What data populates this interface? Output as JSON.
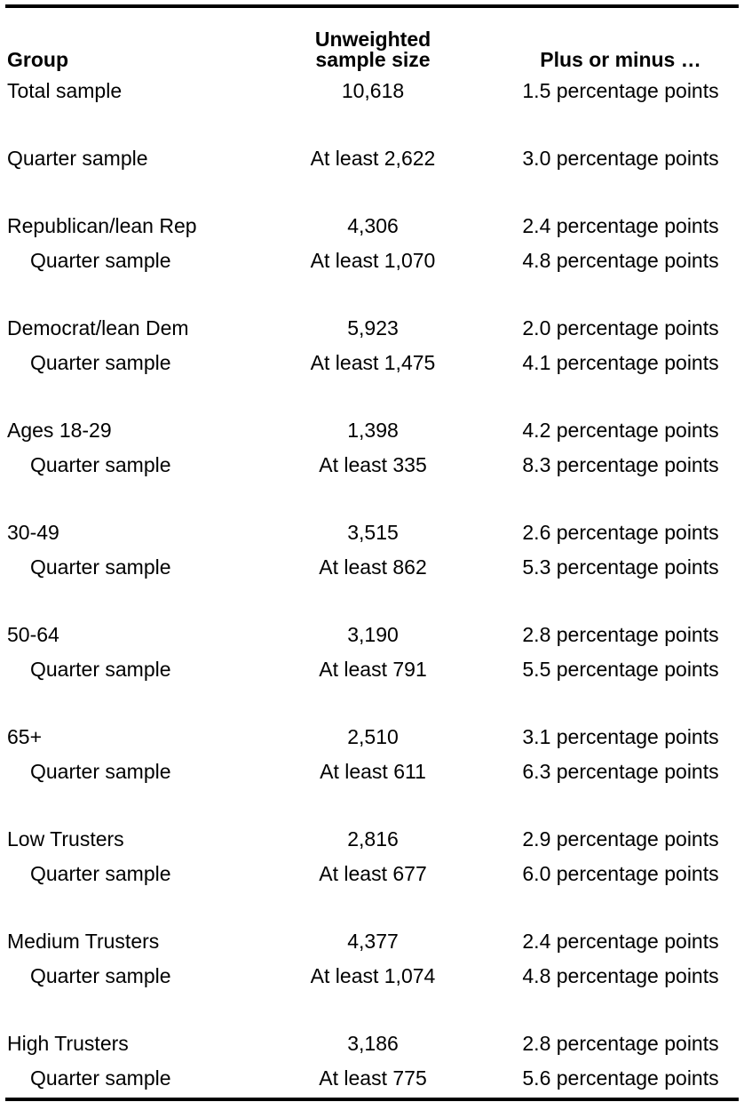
{
  "page": {
    "background_color": "#ffffff",
    "text_color": "#000000",
    "rule_color": "#000000"
  },
  "table": {
    "header": {
      "group_label": "Group",
      "sample_label_line1": "Unweighted",
      "sample_label_line2": "sample size",
      "moe_label": "Plus or minus …"
    },
    "rows": [
      {
        "group": "Total sample",
        "sample": "10,618",
        "moe": "1.5 percentage points"
      },
      {
        "group": "Quarter sample",
        "sample": "At least 2,622",
        "moe": "3.0 percentage points"
      },
      {
        "group": "Republican/lean Rep",
        "sample": "4,306",
        "moe": "2.4 percentage points"
      },
      {
        "group": "Quarter sample",
        "sample": "At least 1,070",
        "moe": "4.8 percentage points"
      },
      {
        "group": "Democrat/lean Dem",
        "sample": "5,923",
        "moe": "2.0 percentage points"
      },
      {
        "group": "Quarter sample",
        "sample": "At least 1,475",
        "moe": "4.1 percentage points"
      },
      {
        "group": "Ages 18-29",
        "sample": "1,398",
        "moe": "4.2 percentage points"
      },
      {
        "group": "Quarter sample",
        "sample": "At least 335",
        "moe": "8.3 percentage points"
      },
      {
        "group": "30-49",
        "sample": "3,515",
        "moe": "2.6 percentage points"
      },
      {
        "group": "Quarter sample",
        "sample": "At least 862",
        "moe": "5.3 percentage points"
      },
      {
        "group": "50-64",
        "sample": "3,190",
        "moe": "2.8 percentage points"
      },
      {
        "group": "Quarter sample",
        "sample": "At least 791",
        "moe": "5.5 percentage points"
      },
      {
        "group": "65+",
        "sample": "2,510",
        "moe": "3.1 percentage points"
      },
      {
        "group": "Quarter sample",
        "sample": "At least 611",
        "moe": "6.3 percentage points"
      },
      {
        "group": "Low Trusters",
        "sample": "2,816",
        "moe": "2.9 percentage points"
      },
      {
        "group": "Quarter sample",
        "sample": "At least 677",
        "moe": "6.0 percentage points"
      },
      {
        "group": "Medium Trusters",
        "sample": "4,377",
        "moe": "2.4 percentage points"
      },
      {
        "group": "Quarter sample",
        "sample": "At least 1,074",
        "moe": "4.8 percentage points"
      },
      {
        "group": "High Trusters",
        "sample": "3,186",
        "moe": "2.8 percentage points"
      },
      {
        "group": "Quarter sample",
        "sample": "At least 775",
        "moe": "5.6 percentage points"
      }
    ]
  }
}
